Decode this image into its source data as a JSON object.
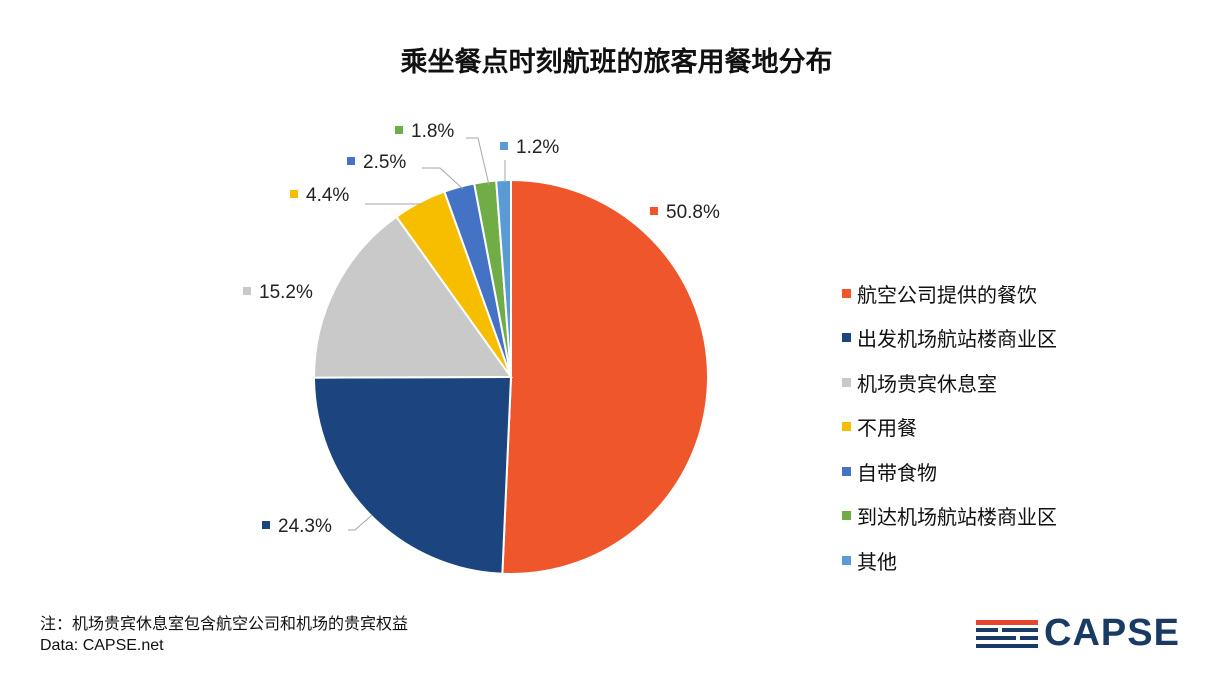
{
  "chart_data": {
    "type": "pie",
    "title": "乘坐餐点时刻航班的旅客用餐地分布",
    "series": [
      {
        "name": "航空公司提供的餐饮",
        "value": 50.8,
        "label": "50.8%",
        "color": "#F0562B"
      },
      {
        "name": "出发机场航站楼商业区",
        "value": 24.3,
        "label": "24.3%",
        "color": "#1C4580"
      },
      {
        "name": "机场贵宾休息室",
        "value": 15.2,
        "label": "15.2%",
        "color": "#C9C9C9"
      },
      {
        "name": "不用餐",
        "value": 4.4,
        "label": "4.4%",
        "color": "#F7BE00"
      },
      {
        "name": "自带食物",
        "value": 2.5,
        "label": "2.5%",
        "color": "#4472C4"
      },
      {
        "name": "到达机场航站楼商业区",
        "value": 1.8,
        "label": "1.8%",
        "color": "#70AD47"
      },
      {
        "name": "其他",
        "value": 1.2,
        "label": "1.2%",
        "color": "#5B9BD5"
      }
    ],
    "legend_position": "right"
  },
  "footnote": "注：机场贵宾休息室包含航空公司和机场的贵宾权益",
  "source": "Data: CAPSE.net",
  "logo": {
    "text": "CAPSE",
    "color": "#1a3a66",
    "accent": "#E8452C"
  }
}
